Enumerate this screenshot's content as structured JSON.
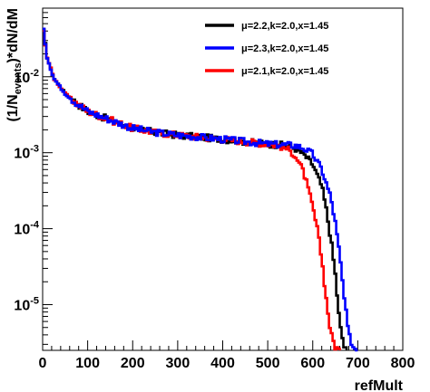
{
  "chart_data": {
    "type": "line",
    "style": "step-histogram",
    "xlabel": "refMult",
    "ylabel": "(1/N_{events})*dN/dM",
    "ylabel_parts": {
      "pre": "(1/N",
      "sub": "events",
      "post": ")*dN/dM"
    },
    "xlim": [
      0,
      800
    ],
    "ylim": [
      2.5e-06,
      0.08
    ],
    "yscale": "log",
    "grid": false,
    "legend_placement": "top-right",
    "x_ticks": [
      "0",
      "100",
      "200",
      "300",
      "400",
      "500",
      "600",
      "700",
      "800"
    ],
    "y_ticks": [
      {
        "value": 0.01,
        "base": "10",
        "exp": "-2"
      },
      {
        "value": 0.001,
        "base": "10",
        "exp": "-3"
      },
      {
        "value": 0.0001,
        "base": "10",
        "exp": "-4"
      },
      {
        "value": 1e-05,
        "base": "10",
        "exp": "-5"
      }
    ],
    "series": [
      {
        "name": "μ=2.2,k=2.0,x=1.45",
        "color": "#000000",
        "x": [
          1,
          10,
          25,
          50,
          75,
          100,
          150,
          200,
          250,
          300,
          350,
          400,
          450,
          500,
          540,
          560,
          580,
          600,
          620,
          630,
          640,
          650,
          660,
          670,
          675
        ],
        "y": [
          0.045,
          0.018,
          0.0095,
          0.006,
          0.0045,
          0.0035,
          0.0027,
          0.0021,
          0.00185,
          0.0017,
          0.0016,
          0.0015,
          0.0014,
          0.0013,
          0.00125,
          0.00115,
          0.00095,
          0.0007,
          0.00036,
          0.00018,
          7.5e-05,
          2.5e-05,
          5.5e-06,
          2.8e-06,
          2.5e-06
        ]
      },
      {
        "name": "μ=2.3,k=2.0,x=1.45",
        "color": "#0000ff",
        "x": [
          1,
          10,
          25,
          50,
          75,
          100,
          150,
          200,
          250,
          300,
          350,
          400,
          450,
          500,
          560,
          580,
          600,
          620,
          640,
          650,
          660,
          670,
          680,
          690,
          700
        ],
        "y": [
          0.046,
          0.018,
          0.0095,
          0.006,
          0.0045,
          0.0035,
          0.0027,
          0.0021,
          0.00185,
          0.0017,
          0.0016,
          0.0015,
          0.0014,
          0.0013,
          0.00125,
          0.00115,
          0.00095,
          0.0006,
          0.00026,
          0.00012,
          4.5e-05,
          1.2e-05,
          4e-06,
          2.8e-06,
          2.5e-06
        ]
      },
      {
        "name": "μ=2.1,k=2.0,x=1.45",
        "color": "#ff0000",
        "x": [
          1,
          10,
          25,
          50,
          75,
          100,
          150,
          200,
          250,
          300,
          350,
          400,
          450,
          500,
          520,
          540,
          560,
          580,
          590,
          600,
          610,
          620,
          630,
          640,
          650,
          660
        ],
        "y": [
          0.044,
          0.018,
          0.0095,
          0.006,
          0.0045,
          0.0035,
          0.0027,
          0.0021,
          0.00185,
          0.0017,
          0.0016,
          0.0015,
          0.0014,
          0.0013,
          0.00125,
          0.00115,
          0.00095,
          0.00055,
          0.00033,
          0.00019,
          0.0001,
          4e-05,
          1.2e-05,
          4.2e-06,
          2.8e-06,
          2.5e-06
        ]
      }
    ]
  }
}
